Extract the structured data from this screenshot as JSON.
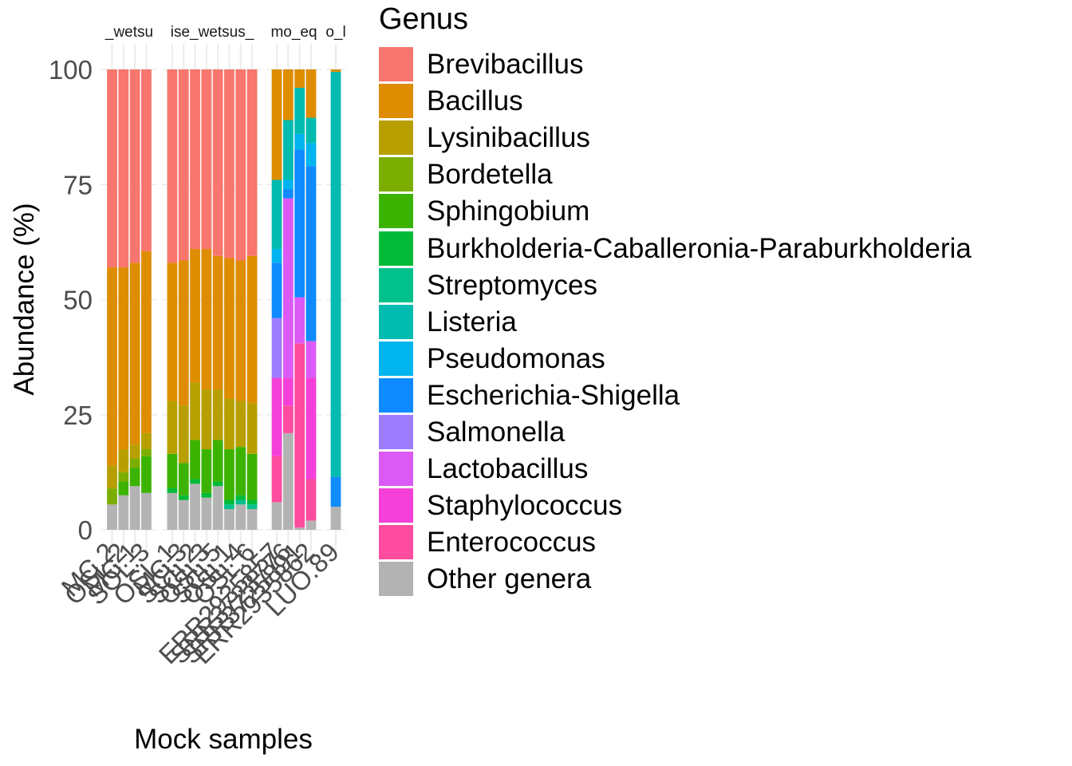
{
  "chart_data": {
    "type": "bar",
    "stacked": true,
    "xlabel": "Mock samples",
    "ylabel": "Abundance (%)",
    "ylim": [
      0,
      100
    ],
    "yticks": [
      0,
      25,
      50,
      75,
      100
    ],
    "grid": true,
    "legend_title": "Genus",
    "legend_placement": "right",
    "genera": [
      {
        "name": "Brevibacillus",
        "color": "#F8766D"
      },
      {
        "name": "Bacillus",
        "color": "#DE8C00"
      },
      {
        "name": "Lysinibacillus",
        "color": "#B79F00"
      },
      {
        "name": "Bordetella",
        "color": "#7CAE00"
      },
      {
        "name": "Sphingobium",
        "color": "#3CB300"
      },
      {
        "name": "Burkholderia-Caballeronia-Paraburkholderia",
        "color": "#00BA38"
      },
      {
        "name": "Streptomyces",
        "color": "#00C08B"
      },
      {
        "name": "Listeria",
        "color": "#00BBAF"
      },
      {
        "name": "Pseudomonas",
        "color": "#00B4EF"
      },
      {
        "name": "Escherichia-Shigella",
        "color": "#0F8BFF"
      },
      {
        "name": "Salmonella",
        "color": "#9E7CFF"
      },
      {
        "name": "Lactobacillus",
        "color": "#DB5AF5"
      },
      {
        "name": "Staphylococcus",
        "color": "#F440D8"
      },
      {
        "name": "Enterococcus",
        "color": "#FF4C9E"
      },
      {
        "name": "Other genera",
        "color": "#B3B3B3"
      }
    ],
    "panels": [
      {
        "strip": "_wetsu",
        "samples": [
          {
            "label": "MC.2",
            "values": {
              "Other genera": 5.5,
              "Bordetella": 3.5,
              "Lysinibacillus": 5,
              "Bacillus": 43,
              "Brevibacillus": 43
            }
          },
          {
            "label": "OSL.2",
            "values": {
              "Other genera": 7.5,
              "Sphingobium": 3,
              "Bordetella": 2,
              "Lysinibacillus": 5,
              "Bacillus": 39.5,
              "Brevibacillus": 43
            }
          },
          {
            "label": "MC.1",
            "values": {
              "Other genera": 9.5,
              "Sphingobium": 4,
              "Bordetella": 2,
              "Lysinibacillus": 3,
              "Bacillus": 39.5,
              "Brevibacillus": 42
            }
          },
          {
            "label": "SOL.3",
            "values": {
              "Other genera": 8,
              "Sphingobium": 8,
              "Bordetella": 1.5,
              "Lysinibacillus": 3.5,
              "Bacillus": 39.5,
              "Brevibacillus": 39.5
            }
          }
        ]
      },
      {
        "strip": "ise_wetsus_",
        "samples": [
          {
            "label": "OSL.1",
            "values": {
              "Other genera": 8,
              "Burkholderia-Caballeronia-Paraburkholderia": 1,
              "Sphingobium": 7.5,
              "Lysinibacillus": 11.5,
              "Bacillus": 30,
              "Brevibacillus": 42
            }
          },
          {
            "label": "MC.3",
            "values": {
              "Other genera": 6.5,
              "Burkholderia-Caballeronia-Paraburkholderia": 1,
              "Sphingobium": 7,
              "Lysinibacillus": 12.5,
              "Bacillus": 31.5,
              "Brevibacillus": 41.5
            }
          },
          {
            "label": "SCL.2",
            "values": {
              "Other genera": 10,
              "Burkholderia-Caballeronia-Paraburkholderia": 1,
              "Sphingobium": 8.5,
              "Lysinibacillus": 12.5,
              "Bacillus": 29,
              "Brevibacillus": 39
            }
          },
          {
            "label": "SCL.3",
            "values": {
              "Other genera": 7,
              "Burkholderia-Caballeronia-Paraburkholderia": 1,
              "Sphingobium": 9.5,
              "Lysinibacillus": 13,
              "Bacillus": 30.5,
              "Brevibacillus": 39
            }
          },
          {
            "label": "OSL.5",
            "values": {
              "Other genera": 9.5,
              "Burkholderia-Caballeronia-Paraburkholderia": 1,
              "Sphingobium": 9,
              "Lysinibacillus": 11,
              "Bacillus": 29,
              "Brevibacillus": 40.5
            }
          },
          {
            "label": "SCL.1",
            "values": {
              "Other genera": 4.5,
              "Streptomyces": 1,
              "Burkholderia-Caballeronia-Paraburkholderia": 1,
              "Sphingobium": 11,
              "Lysinibacillus": 11,
              "Bacillus": 30.5,
              "Brevibacillus": 41
            }
          },
          {
            "label": "OSL.4",
            "values": {
              "Other genera": 5.5,
              "Streptomyces": 1,
              "Burkholderia-Caballeronia-Paraburkholderia": 1,
              "Sphingobium": 10.5,
              "Lysinibacillus": 10,
              "Bacillus": 30.5,
              "Brevibacillus": 41.5
            }
          },
          {
            "label": "OSL.6",
            "values": {
              "Other genera": 4.5,
              "Streptomyces": 1,
              "Burkholderia-Caballeronia-Paraburkholderia": 1,
              "Sphingobium": 10,
              "Lysinibacillus": 11,
              "Bacillus": 32,
              "Brevibacillus": 40.5
            }
          }
        ]
      },
      {
        "strip": "mo_eq",
        "samples": [
          {
            "label": "ERR2935857",
            "values": {
              "Other genera": 6,
              "Enterococcus": 10,
              "Staphylococcus": 17,
              "Salmonella": 13,
              "Escherichia-Shigella": 12,
              "Pseudomonas": 3,
              "Listeria": 15,
              "Bacillus": 24
            }
          },
          {
            "label": "SRR3723776",
            "values": {
              "Other genera": 21,
              "Enterococcus": 6,
              "Staphylococcus": 6,
              "Lactobacillus": 39,
              "Escherichia-Shigella": 2,
              "Pseudomonas": 2,
              "Listeria": 13,
              "Bacillus": 11
            }
          },
          {
            "label": "SRR3725891",
            "values": {
              "Other genera": 0.5,
              "Enterococcus": 40,
              "Lactobacillus": 10,
              "Escherichia-Shigella": 32,
              "Pseudomonas": 3.5,
              "Listeria": 10,
              "Bacillus": 4
            }
          },
          {
            "label": "ERR2935862",
            "values": {
              "Other genera": 2,
              "Enterococcus": 9,
              "Staphylococcus": 22,
              "Lactobacillus": 8,
              "Escherichia-Shigella": 38,
              "Pseudomonas": 5,
              "Listeria": 5.5,
              "Bacillus": 10.5
            }
          }
        ]
      },
      {
        "strip": "o_l",
        "samples": [
          {
            "label": "LUO.89",
            "values": {
              "Other genera": 5,
              "Escherichia-Shigella": 6.5,
              "Listeria": 88,
              "Bacillus": 0.5
            }
          }
        ]
      }
    ]
  }
}
